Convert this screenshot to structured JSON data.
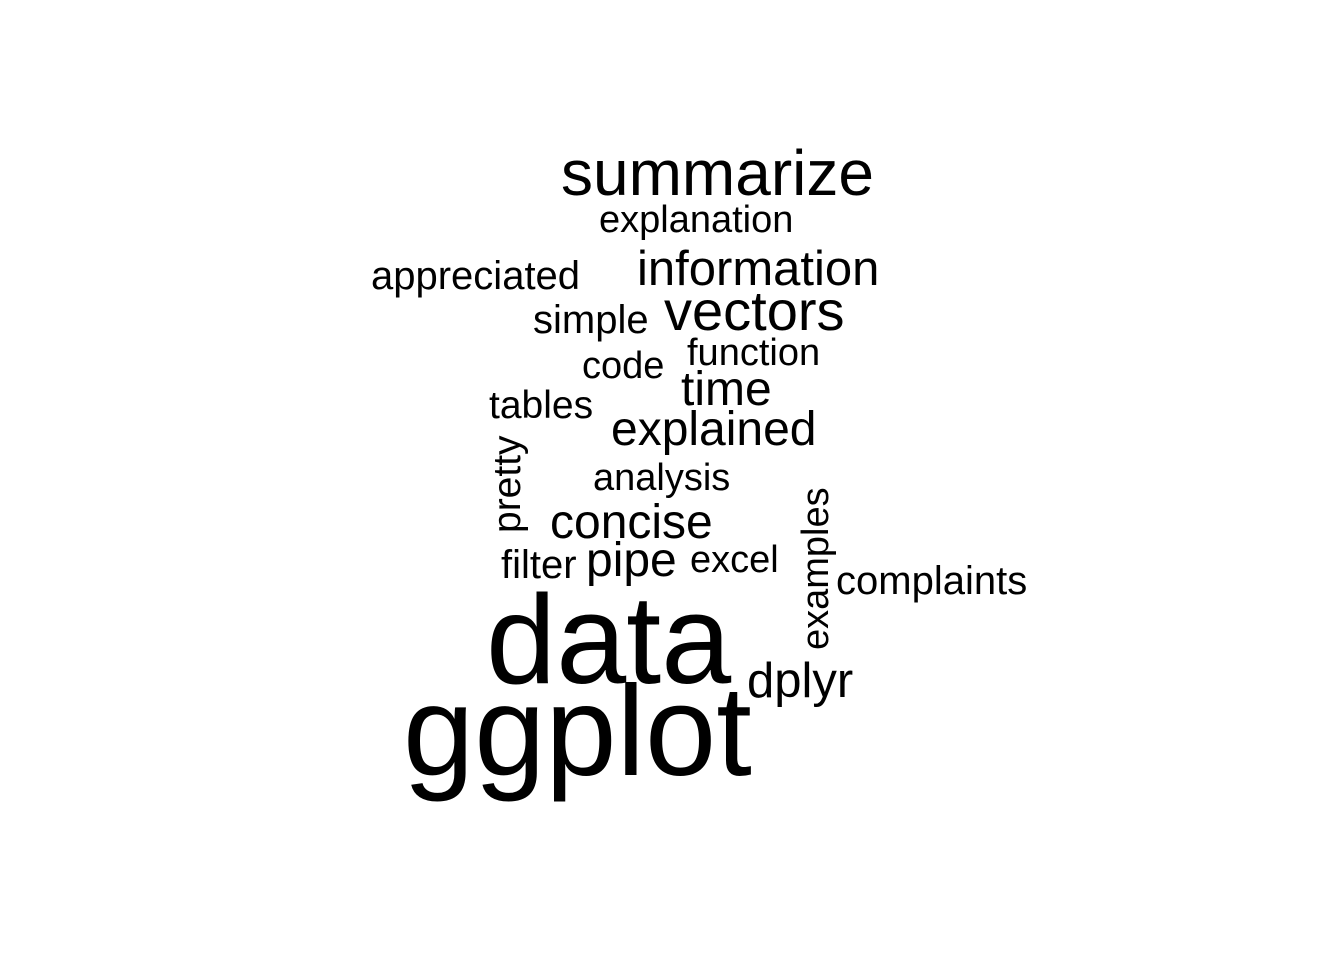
{
  "word_cloud": {
    "text_color": "#000000",
    "background_color": "#ffffff",
    "words": {
      "summarize": "summarize",
      "explanation": "explanation",
      "information": "information",
      "appreciated": "appreciated",
      "simple": "simple",
      "vectors": "vectors",
      "function": "function",
      "code": "code",
      "time": "time",
      "tables": "tables",
      "explained": "explained",
      "pretty": "pretty",
      "analysis": "analysis",
      "examples": "examples",
      "concise": "concise",
      "filter": "filter",
      "pipe": "pipe",
      "excel": "excel",
      "complaints": "complaints",
      "data": "data",
      "dplyr": "dplyr",
      "ggplot": "ggplot"
    },
    "rotated_words": [
      "pretty",
      "examples"
    ]
  }
}
